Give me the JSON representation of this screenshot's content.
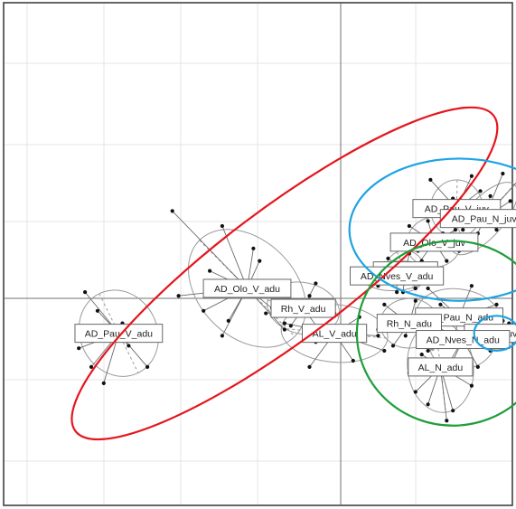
{
  "chart_data": {
    "type": "scatter",
    "title": "",
    "xlabel": "",
    "ylabel": "",
    "grid": true,
    "legend": "none",
    "groups": [
      {
        "label": "AD_Pau_V_juv",
        "centroid": [
          0.93,
          0.72
        ],
        "points": [
          [
            0.72,
            0.95
          ],
          [
            1.05,
            0.98
          ],
          [
            1.12,
            0.86
          ],
          [
            0.82,
            0.62
          ],
          [
            0.98,
            0.55
          ],
          [
            0.9,
            0.8
          ],
          [
            1.08,
            0.68
          ],
          [
            0.78,
            0.74
          ]
        ]
      },
      {
        "label": "AD_Pau_N_juv",
        "centroid": [
          1.15,
          0.64
        ],
        "points": [
          [
            1.3,
            1.0
          ],
          [
            1.42,
            0.94
          ],
          [
            1.36,
            0.78
          ],
          [
            1.25,
            0.55
          ],
          [
            1.05,
            0.6
          ],
          [
            1.2,
            0.82
          ],
          [
            1.45,
            0.7
          ],
          [
            1.1,
            0.52
          ]
        ]
      },
      {
        "label": "AD_Olo_V_juv",
        "centroid": [
          0.75,
          0.45
        ],
        "points": [
          [
            0.55,
            0.58
          ],
          [
            0.62,
            0.38
          ],
          [
            0.85,
            0.3
          ],
          [
            0.92,
            0.55
          ],
          [
            0.7,
            0.62
          ],
          [
            0.58,
            0.22
          ],
          [
            0.82,
            0.52
          ],
          [
            0.95,
            0.38
          ]
        ]
      },
      {
        "label": "Rh_N_juv",
        "centroid": [
          0.52,
          0.22
        ],
        "points": [
          [
            0.38,
            0.32
          ],
          [
            0.45,
            0.12
          ],
          [
            0.6,
            0.08
          ],
          [
            0.65,
            0.3
          ],
          [
            0.4,
            0.2
          ],
          [
            0.55,
            0.36
          ],
          [
            0.68,
            0.18
          ],
          [
            0.5,
            0.05
          ]
        ]
      },
      {
        "label": "AD_Nves_V_adu",
        "centroid": [
          0.45,
          0.18
        ],
        "points": [
          [
            0.2,
            0.22
          ],
          [
            0.35,
            0.28
          ],
          [
            0.55,
            0.28
          ],
          [
            0.65,
            0.15
          ],
          [
            0.3,
            0.1
          ],
          [
            0.45,
            0.05
          ],
          [
            0.7,
            0.24
          ],
          [
            0.25,
            0.16
          ]
        ]
      },
      {
        "label": "AD_Olo_V_adu",
        "centroid": [
          -0.75,
          0.08
        ],
        "points": [
          [
            -1.35,
            0.7
          ],
          [
            -0.95,
            0.58
          ],
          [
            -1.05,
            0.22
          ],
          [
            -0.65,
            0.3
          ],
          [
            -0.5,
            0.12
          ],
          [
            -1.3,
            0.02
          ],
          [
            -0.9,
            -0.18
          ],
          [
            -0.55,
            -0.08
          ],
          [
            -1.1,
            -0.1
          ],
          [
            -0.7,
            0.4
          ],
          [
            -0.45,
            -0.25
          ],
          [
            -0.95,
            -0.3
          ]
        ]
      },
      {
        "label": "AD_Pau_V_adu",
        "centroid": [
          -1.78,
          -0.28
        ],
        "points": [
          [
            -2.05,
            0.05
          ],
          [
            -1.95,
            -0.1
          ],
          [
            -1.7,
            -0.38
          ],
          [
            -1.55,
            -0.55
          ],
          [
            -2.0,
            -0.55
          ],
          [
            -1.9,
            -0.68
          ],
          [
            -1.75,
            -0.2
          ],
          [
            -1.5,
            -0.3
          ],
          [
            -2.1,
            -0.4
          ]
        ]
      },
      {
        "label": "Rh_V_adu",
        "centroid": [
          -0.3,
          -0.08
        ],
        "points": [
          [
            -0.55,
            0.08
          ],
          [
            -0.2,
            0.12
          ],
          [
            -0.05,
            -0.12
          ],
          [
            -0.4,
            -0.22
          ],
          [
            -0.15,
            -0.28
          ],
          [
            -0.6,
            -0.12
          ],
          [
            -0.25,
            0.02
          ]
        ]
      },
      {
        "label": "AD_Pau_N_adu",
        "centroid": [
          0.95,
          -0.15
        ],
        "points": [
          [
            0.7,
            0.08
          ],
          [
            1.05,
            0.1
          ],
          [
            1.25,
            -0.05
          ],
          [
            1.2,
            -0.3
          ],
          [
            0.9,
            -0.35
          ],
          [
            0.65,
            -0.2
          ],
          [
            1.0,
            -0.22
          ],
          [
            0.8,
            -0.05
          ],
          [
            1.3,
            -0.18
          ]
        ]
      },
      {
        "label": "Rh_N_adu",
        "centroid": [
          0.55,
          -0.2
        ],
        "points": [
          [
            0.35,
            -0.05
          ],
          [
            0.6,
            -0.02
          ],
          [
            0.72,
            -0.18
          ],
          [
            0.68,
            -0.35
          ],
          [
            0.42,
            -0.38
          ],
          [
            0.3,
            -0.25
          ],
          [
            0.52,
            -0.3
          ]
        ]
      },
      {
        "label": "AL_N_juv",
        "centroid": [
          1.25,
          -0.28
        ],
        "points": [
          [
            1.12,
            -0.2
          ],
          [
            1.35,
            -0.2
          ],
          [
            1.4,
            -0.35
          ],
          [
            1.2,
            -0.42
          ],
          [
            1.08,
            -0.32
          ]
        ]
      },
      {
        "label": "AD_Nves_N_adu",
        "centroid": [
          0.98,
          -0.33
        ],
        "points": [
          [
            0.75,
            -0.22
          ],
          [
            1.05,
            -0.25
          ],
          [
            1.2,
            -0.4
          ],
          [
            0.9,
            -0.5
          ],
          [
            0.7,
            -0.42
          ],
          [
            1.1,
            -0.55
          ],
          [
            0.82,
            -0.6
          ]
        ]
      },
      {
        "label": "AL_V_adu",
        "centroid": [
          -0.05,
          -0.28
        ],
        "points": [
          [
            -0.45,
            -0.2
          ],
          [
            -0.2,
            -0.35
          ],
          [
            0.15,
            -0.15
          ],
          [
            0.3,
            -0.3
          ],
          [
            0.1,
            -0.5
          ],
          [
            -0.25,
            -0.55
          ],
          [
            0.35,
            -0.42
          ]
        ]
      },
      {
        "label": "AL_N_adu",
        "centroid": [
          0.8,
          -0.55
        ],
        "points": [
          [
            0.55,
            -0.6
          ],
          [
            0.7,
            -0.85
          ],
          [
            0.9,
            -0.9
          ],
          [
            1.05,
            -0.7
          ],
          [
            0.6,
            -0.75
          ],
          [
            0.85,
            -0.98
          ],
          [
            1.0,
            -0.55
          ],
          [
            0.65,
            -0.45
          ]
        ]
      }
    ],
    "highlights": [
      {
        "shape": "ellipse",
        "color": "#e4161d",
        "cx": -0.45,
        "cy": 0.2,
        "rx": 2.1,
        "ry": 0.52,
        "angle_deg": 37
      },
      {
        "shape": "ellipse",
        "color": "#1ca3e3",
        "cx": 0.95,
        "cy": 0.55,
        "rx": 0.88,
        "ry": 0.57,
        "angle_deg": 0
      },
      {
        "shape": "ellipse",
        "color": "#1f9e3a",
        "cx": 0.9,
        "cy": -0.28,
        "rx": 0.77,
        "ry": 0.74,
        "angle_deg": 0
      },
      {
        "shape": "ellipse",
        "color": "#1ca3e3",
        "cx": 1.25,
        "cy": -0.28,
        "rx": 0.18,
        "ry": 0.14,
        "angle_deg": 0
      }
    ]
  }
}
